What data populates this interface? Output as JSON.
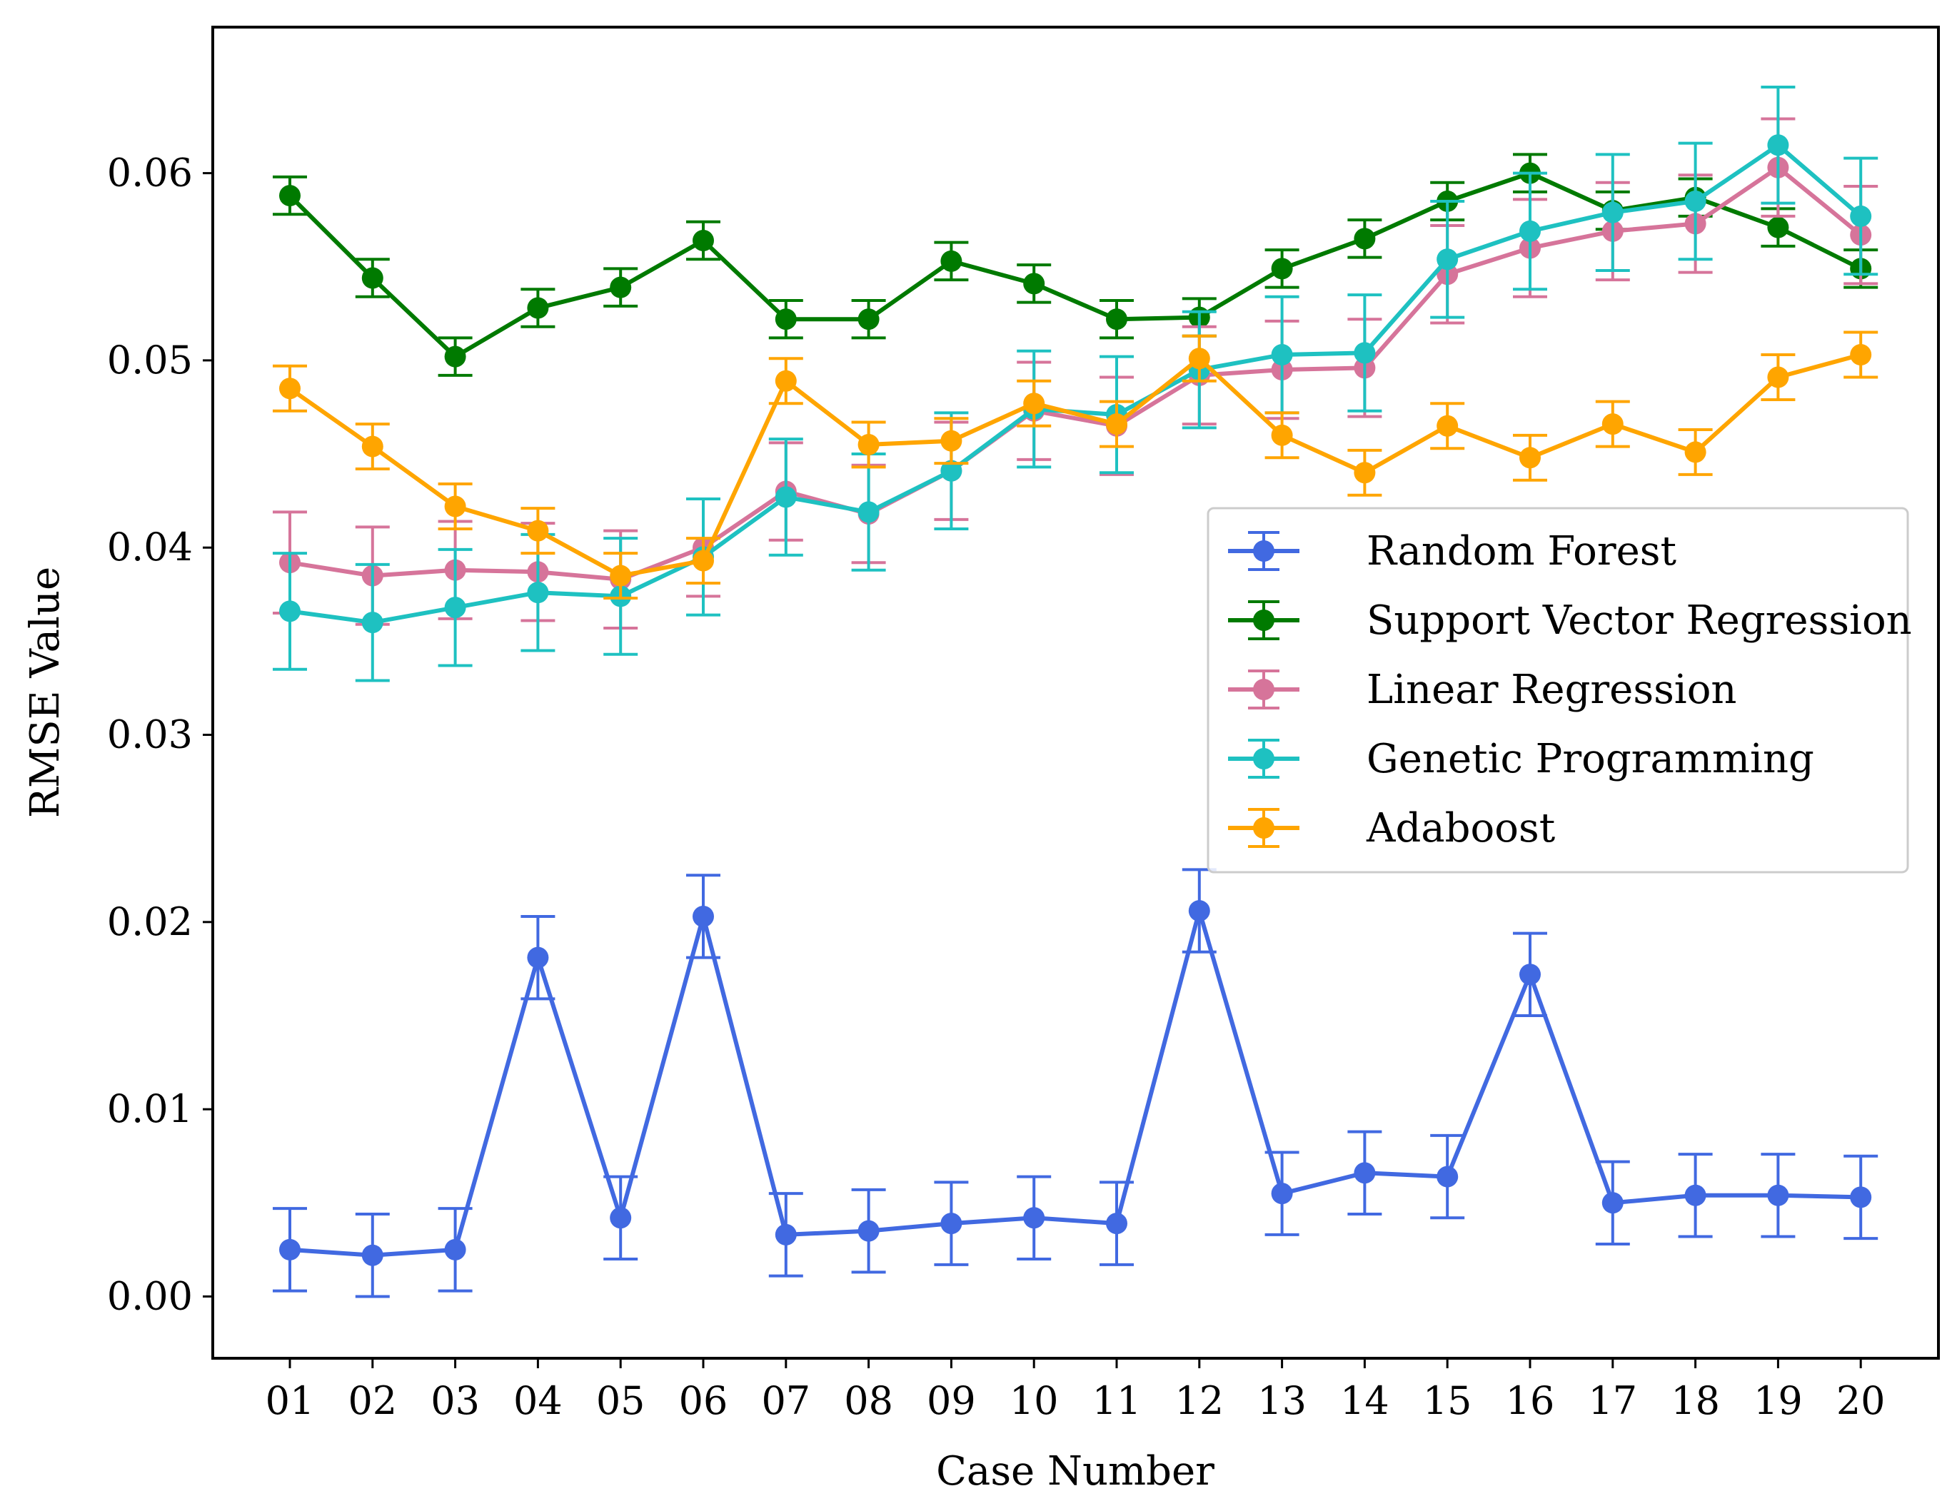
{
  "chart_data": {
    "type": "line",
    "title": "",
    "xlabel": "Case Number",
    "ylabel": "RMSE Value",
    "categories": [
      "01",
      "02",
      "03",
      "04",
      "05",
      "06",
      "07",
      "08",
      "09",
      "10",
      "11",
      "12",
      "13",
      "14",
      "15",
      "16",
      "17",
      "18",
      "19",
      "20"
    ],
    "ylim": [
      -0.0033,
      0.0678
    ],
    "yticks": [
      0.0,
      0.01,
      0.02,
      0.03,
      0.04,
      0.05,
      0.06
    ],
    "ytick_labels": [
      "0.00",
      "0.01",
      "0.02",
      "0.03",
      "0.04",
      "0.05",
      "0.06"
    ],
    "grid": false,
    "legend_position": "center-right",
    "series": [
      {
        "name": "Random Forest",
        "color": "#4169e1",
        "values": [
          0.0025,
          0.0022,
          0.0025,
          0.0181,
          0.0042,
          0.0203,
          0.0033,
          0.0035,
          0.0039,
          0.0042,
          0.0039,
          0.0206,
          0.0055,
          0.0066,
          0.0064,
          0.0172,
          0.005,
          0.0054,
          0.0054,
          0.0053
        ],
        "errors": [
          0.0022,
          0.0022,
          0.0022,
          0.0022,
          0.0022,
          0.0022,
          0.0022,
          0.0022,
          0.0022,
          0.0022,
          0.0022,
          0.0022,
          0.0022,
          0.0022,
          0.0022,
          0.0022,
          0.0022,
          0.0022,
          0.0022,
          0.0022
        ]
      },
      {
        "name": "Support Vector Regression",
        "color": "#007a00",
        "values": [
          0.0588,
          0.0544,
          0.0502,
          0.0528,
          0.0539,
          0.0564,
          0.0522,
          0.0522,
          0.0553,
          0.0541,
          0.0522,
          0.0523,
          0.0549,
          0.0565,
          0.0585,
          0.06,
          0.058,
          0.0587,
          0.0571,
          0.0549
        ],
        "errors": [
          0.001,
          0.001,
          0.001,
          0.001,
          0.001,
          0.001,
          0.001,
          0.001,
          0.001,
          0.001,
          0.001,
          0.001,
          0.001,
          0.001,
          0.001,
          0.001,
          0.001,
          0.001,
          0.001,
          0.001
        ]
      },
      {
        "name": "Linear Regression",
        "color": "#d6749a",
        "values": [
          0.0392,
          0.0385,
          0.0388,
          0.0387,
          0.0383,
          0.04,
          0.043,
          0.0418,
          0.0441,
          0.0473,
          0.0465,
          0.0492,
          0.0495,
          0.0496,
          0.0546,
          0.056,
          0.0569,
          0.0573,
          0.0603,
          0.0567
        ],
        "errors": [
          0.0027,
          0.0026,
          0.0026,
          0.0026,
          0.0026,
          0.0026,
          0.0026,
          0.0026,
          0.0026,
          0.0026,
          0.0026,
          0.0026,
          0.0026,
          0.0026,
          0.0026,
          0.0026,
          0.0026,
          0.0026,
          0.0026,
          0.0026
        ]
      },
      {
        "name": "Genetic Programming",
        "color": "#1ec1c1",
        "values": [
          0.0366,
          0.036,
          0.0368,
          0.0376,
          0.0374,
          0.0395,
          0.0427,
          0.0419,
          0.0441,
          0.0474,
          0.0471,
          0.0495,
          0.0503,
          0.0504,
          0.0554,
          0.0569,
          0.0579,
          0.0585,
          0.0615,
          0.0577
        ],
        "errors": [
          0.0031,
          0.0031,
          0.0031,
          0.0031,
          0.0031,
          0.0031,
          0.0031,
          0.0031,
          0.0031,
          0.0031,
          0.0031,
          0.0031,
          0.0031,
          0.0031,
          0.0031,
          0.0031,
          0.0031,
          0.0031,
          0.0031,
          0.0031
        ]
      },
      {
        "name": "Adaboost",
        "color": "#ffa500",
        "values": [
          0.0485,
          0.0454,
          0.0422,
          0.0409,
          0.0385,
          0.0393,
          0.0489,
          0.0455,
          0.0457,
          0.0477,
          0.0466,
          0.0501,
          0.046,
          0.044,
          0.0465,
          0.0448,
          0.0466,
          0.0451,
          0.0491,
          0.0503
        ],
        "errors": [
          0.0012,
          0.0012,
          0.0012,
          0.0012,
          0.0012,
          0.0012,
          0.0012,
          0.0012,
          0.0012,
          0.0012,
          0.0012,
          0.0012,
          0.0012,
          0.0012,
          0.0012,
          0.0012,
          0.0012,
          0.0012,
          0.0012,
          0.0012
        ]
      }
    ]
  }
}
